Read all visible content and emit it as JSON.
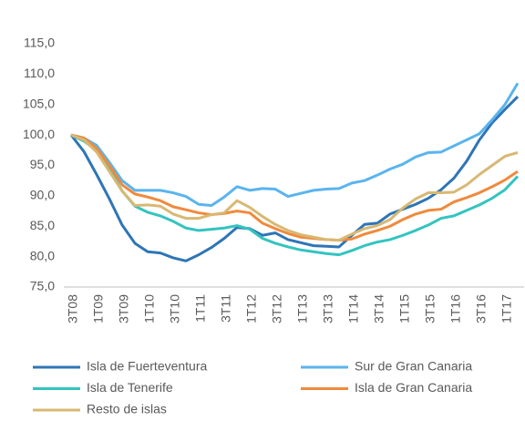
{
  "chart_data": {
    "type": "line",
    "categories": [
      "3T08",
      null,
      "1T09",
      null,
      "3T09",
      null,
      "1T10",
      null,
      "3T10",
      null,
      "1T11",
      null,
      "3T11",
      null,
      "1T12",
      null,
      "3T12",
      null,
      "1T13",
      null,
      "3T13",
      null,
      "1T14",
      null,
      "3T14",
      null,
      "1T15",
      null,
      "3T15",
      null,
      "1T16",
      null,
      "3T16",
      null,
      "1T17",
      null
    ],
    "series": [
      {
        "name": "Isla de Fuerteventura",
        "color": "#2e75b6",
        "values": [
          100,
          97.3,
          93.5,
          89.5,
          85.2,
          82.2,
          80.8,
          80.6,
          79.8,
          79.3,
          80.3,
          81.5,
          83,
          84.8,
          84.6,
          83.5,
          83.9,
          82.8,
          82.3,
          81.8,
          81.7,
          81.6,
          83.5,
          85.3,
          85.5,
          87,
          87.8,
          88.6,
          89.6,
          91,
          92.9,
          95.7,
          99.2,
          102,
          104.2,
          106.3
        ]
      },
      {
        "name": "Sur de Gran Canaria",
        "color": "#5ab4ee",
        "values": [
          100,
          99.5,
          98.3,
          95.5,
          92.5,
          90.9,
          90.9,
          90.9,
          90.5,
          89.9,
          88.6,
          88.4,
          89.8,
          91.5,
          90.9,
          91.2,
          91.1,
          89.9,
          90.4,
          90.9,
          91.1,
          91.2,
          92.1,
          92.5,
          93.4,
          94.4,
          95.2,
          96.4,
          97.1,
          97.2,
          98.2,
          99.2,
          100.2,
          102.5,
          105,
          108.5
        ]
      },
      {
        "name": "Isla de Tenerife",
        "color": "#33c4c0",
        "values": [
          100,
          99,
          97.5,
          94.5,
          90.8,
          88.3,
          87.3,
          86.7,
          85.8,
          84.7,
          84.3,
          84.5,
          84.7,
          85.1,
          84.5,
          83,
          82.2,
          81.6,
          81.1,
          80.8,
          80.5,
          80.3,
          81,
          81.8,
          82.4,
          82.8,
          83.5,
          84.3,
          85.2,
          86.3,
          86.7,
          87.6,
          88.5,
          89.6,
          91,
          93.2
        ]
      },
      {
        "name": "Isla de Gran Canaria",
        "color": "#f08a3c",
        "values": [
          100,
          99.5,
          97.8,
          95,
          91.8,
          90.3,
          89.8,
          89.2,
          88.2,
          87.7,
          87.2,
          86.9,
          87.1,
          87.5,
          87.2,
          85.5,
          84.6,
          83.8,
          83.2,
          83,
          82.8,
          82.7,
          82.9,
          83.7,
          84.3,
          85,
          86.1,
          87,
          87.6,
          87.8,
          89,
          89.7,
          90.5,
          91.5,
          92.6,
          94
        ]
      },
      {
        "name": "Resto de islas",
        "color": "#d8b873",
        "values": [
          100,
          99.2,
          97.2,
          94,
          90.8,
          88.4,
          88.5,
          88.3,
          87,
          86.3,
          86.3,
          86.9,
          87.2,
          89.2,
          88.1,
          86.6,
          85.3,
          84.3,
          83.6,
          83.2,
          82.8,
          82.7,
          83.7,
          84.6,
          85.1,
          86.1,
          88,
          89.5,
          90.5,
          90.5,
          90.6,
          91.8,
          93.5,
          95,
          96.5,
          97.1
        ]
      }
    ],
    "ylim": [
      75,
      115
    ],
    "yticks": [
      {
        "value": 75,
        "label": "75,0"
      },
      {
        "value": 80,
        "label": "80,0"
      },
      {
        "value": 85,
        "label": "85,0"
      },
      {
        "value": 90,
        "label": "90,0"
      },
      {
        "value": 95,
        "label": "95,0"
      },
      {
        "value": 100,
        "label": "100,0"
      },
      {
        "value": 105,
        "label": "105,0"
      },
      {
        "value": 110,
        "label": "110,0"
      },
      {
        "value": 115,
        "label": "115,0"
      }
    ],
    "grid": false,
    "legend": "bottom"
  }
}
